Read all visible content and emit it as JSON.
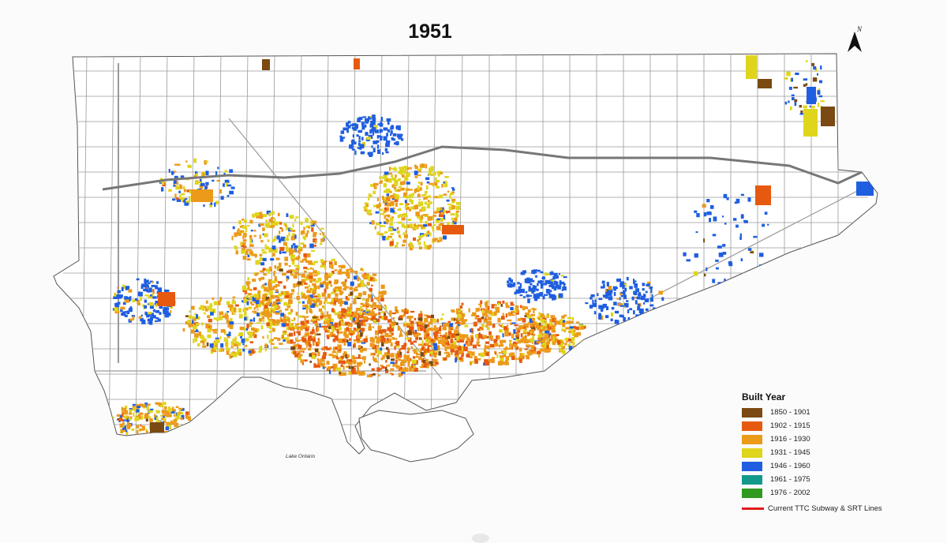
{
  "map": {
    "title": "1951",
    "lake_label": "Lake Ontario",
    "north_label": "N"
  },
  "legend": {
    "title": "Built Year",
    "items": [
      {
        "label": "1850 - 1901",
        "color": "#7a4a12"
      },
      {
        "label": "1902 - 1915",
        "color": "#e65a10"
      },
      {
        "label": "1916 - 1930",
        "color": "#ec9a1a"
      },
      {
        "label": "1931 - 1945",
        "color": "#dfd51c"
      },
      {
        "label": "1946 - 1960",
        "color": "#1f5ee0"
      },
      {
        "label": "1961 - 1975",
        "color": "#13998c"
      },
      {
        "label": "1976 - 2002",
        "color": "#2f9a1e"
      }
    ],
    "line_label": "Current TTC Subway & SRT Lines",
    "line_color": "#e31a1c"
  },
  "colors": {
    "background": "#fbfbfb",
    "road": "#9a9a9a",
    "highway": "#7a7a7a",
    "outline": "#555555"
  }
}
